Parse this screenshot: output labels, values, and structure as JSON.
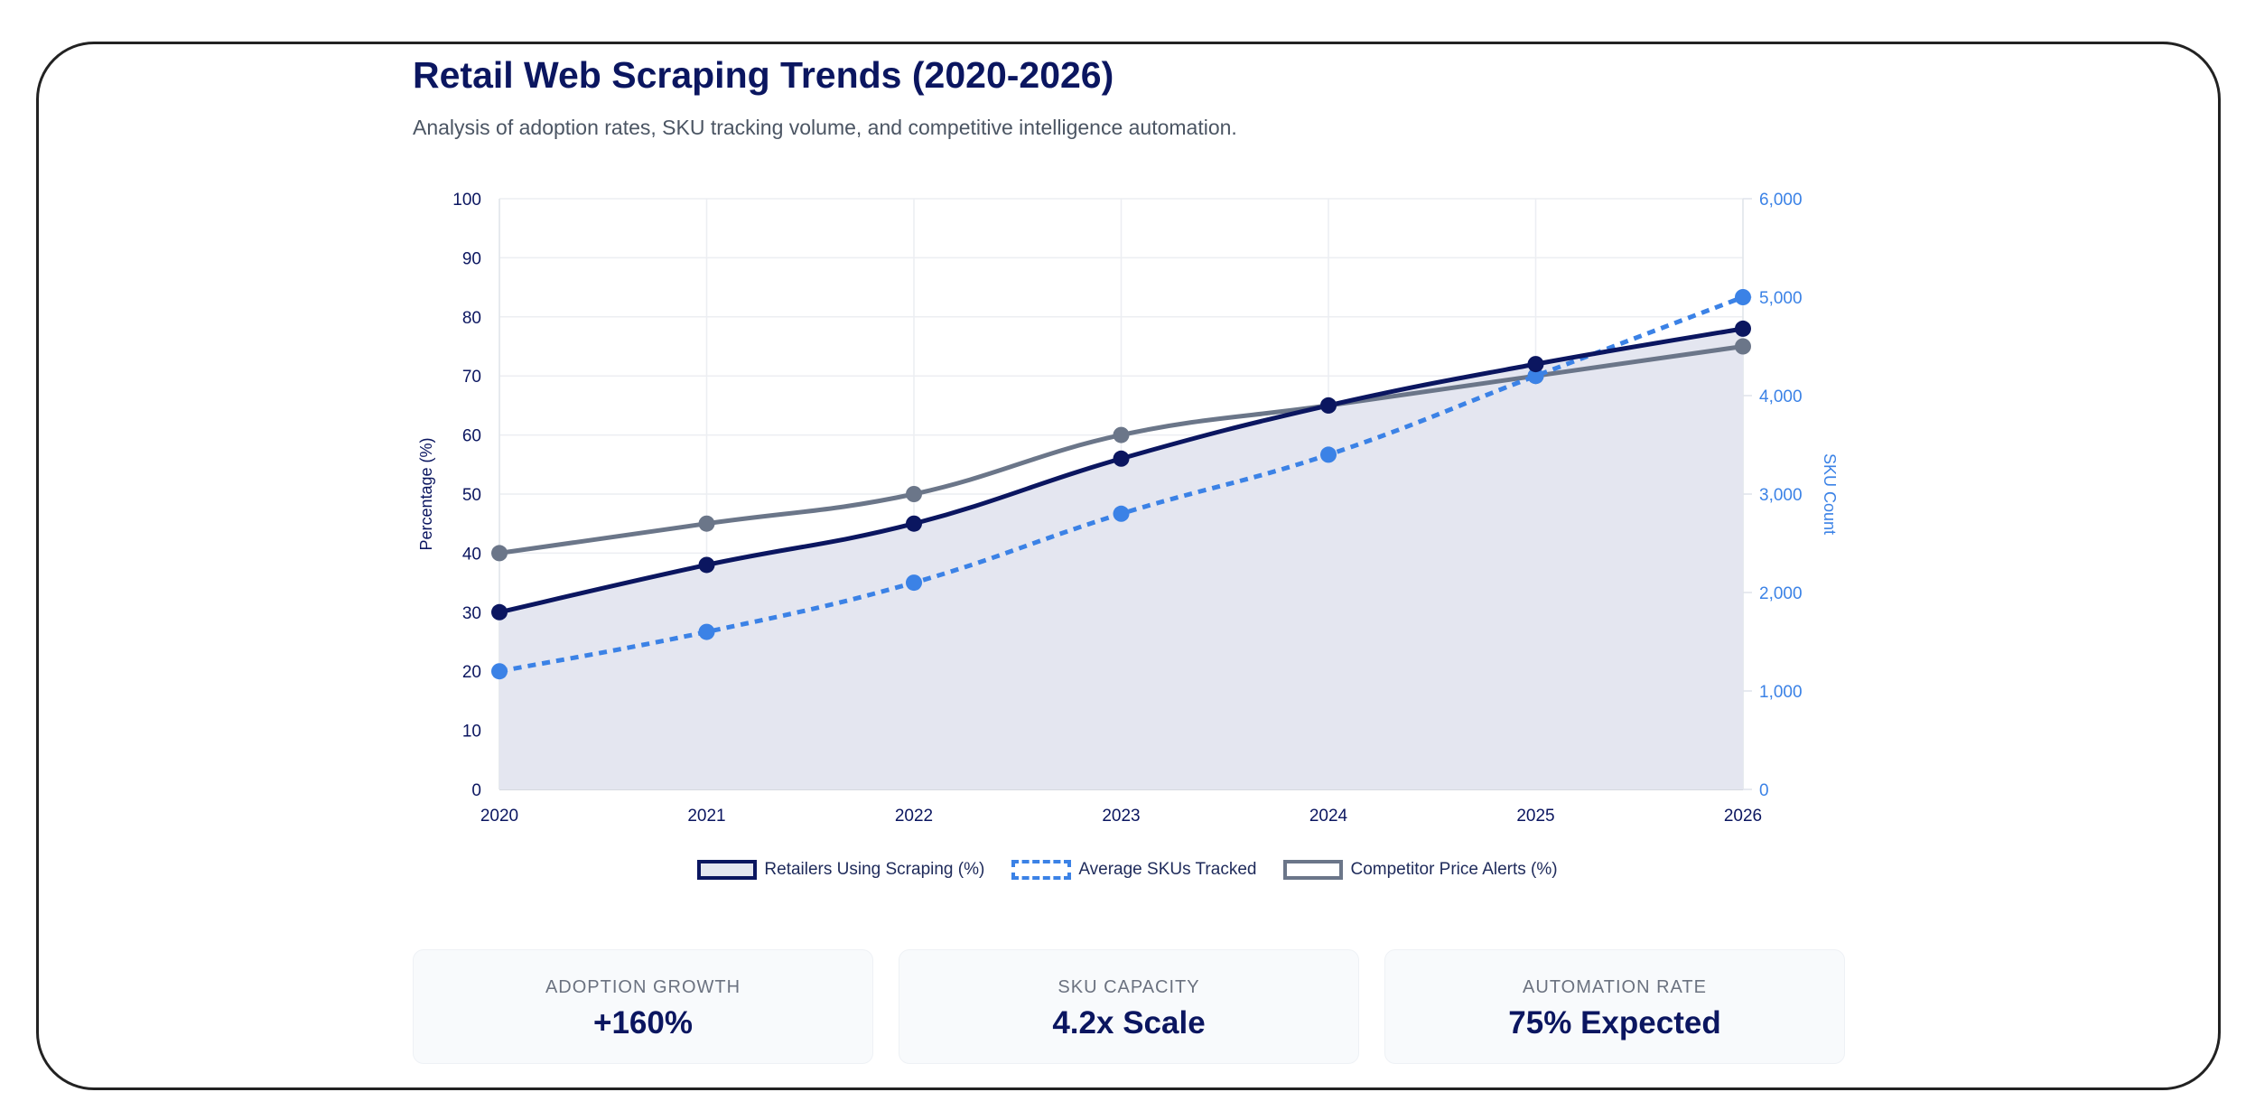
{
  "header": {
    "title": "Retail Web Scraping Trends (2020-2026)",
    "subtitle": "Analysis of adoption rates, SKU tracking volume, and competitive intelligence automation."
  },
  "chart_data": {
    "type": "line",
    "x": [
      "2020",
      "2021",
      "2022",
      "2023",
      "2024",
      "2025",
      "2026"
    ],
    "ylabel": "Percentage (%)",
    "y2label": "SKU Count",
    "ylim": [
      0,
      100
    ],
    "y2lim": [
      0,
      6000
    ],
    "yticks": [
      "0",
      "10",
      "20",
      "30",
      "40",
      "50",
      "60",
      "70",
      "80",
      "90",
      "100"
    ],
    "y2ticks": [
      "0",
      "1,000",
      "2,000",
      "3,000",
      "4,000",
      "5,000",
      "6,000"
    ],
    "grid": true,
    "legend_position": "bottom",
    "series": [
      {
        "name": "Retailers Using Scraping (%)",
        "axis": "left",
        "values": [
          30,
          38,
          45,
          56,
          65,
          72,
          78
        ],
        "color": "#0b1660",
        "fill": "#e4e6f0",
        "style": "solid"
      },
      {
        "name": "Average SKUs Tracked",
        "axis": "right",
        "values": [
          1200,
          1600,
          2100,
          2800,
          3400,
          4200,
          5000
        ],
        "color": "#3b82e6",
        "style": "dashed"
      },
      {
        "name": "Competitor Price Alerts (%)",
        "axis": "left",
        "values": [
          40,
          45,
          50,
          60,
          65,
          70,
          75
        ],
        "color": "#6b7689",
        "style": "solid"
      }
    ]
  },
  "cards": [
    {
      "label": "ADOPTION GROWTH",
      "value": "+160%"
    },
    {
      "label": "SKU CAPACITY",
      "value": "4.2x Scale"
    },
    {
      "label": "AUTOMATION RATE",
      "value": "75% Expected"
    }
  ]
}
